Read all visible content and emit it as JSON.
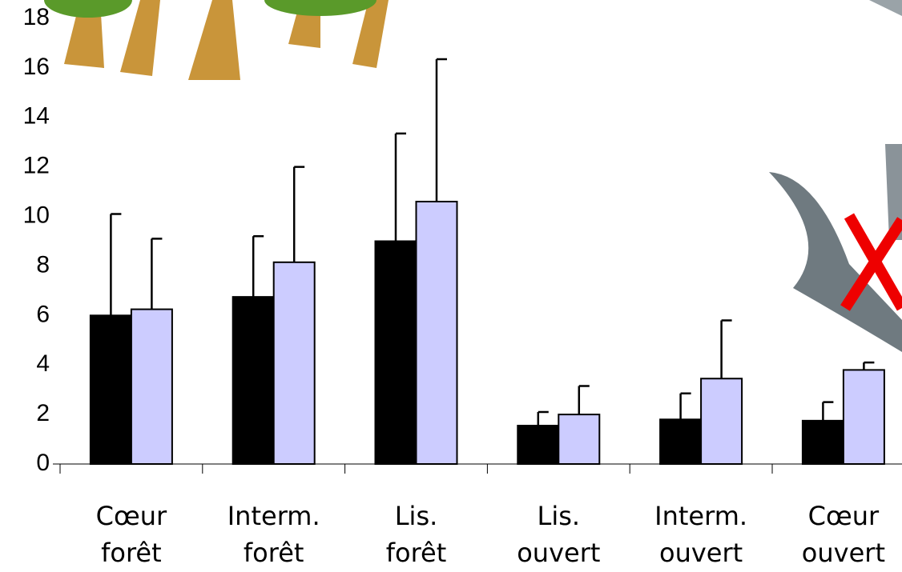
{
  "chart_data": {
    "type": "bar",
    "categories": [
      "Cœur forêt",
      "Interm. forêt",
      "Lis. forêt",
      "Lis. ouvert",
      "Interm. ouvert",
      "Cœur ouvert"
    ],
    "series": [
      {
        "color": "#000000",
        "values": [
          6.0,
          6.75,
          9.0,
          1.55,
          1.8,
          1.75
        ],
        "errors": [
          4.1,
          2.45,
          4.35,
          0.55,
          1.05,
          0.75
        ]
      },
      {
        "color": "#ccccff",
        "values": [
          6.25,
          8.15,
          10.6,
          2.0,
          3.45,
          3.8
        ],
        "errors": [
          2.85,
          3.85,
          5.75,
          1.15,
          2.35,
          0.3
        ]
      }
    ],
    "ylim": [
      0,
      18
    ],
    "yticks": [
      0,
      2,
      4,
      6,
      8,
      10,
      12,
      14,
      16,
      18
    ],
    "grid": false
  }
}
